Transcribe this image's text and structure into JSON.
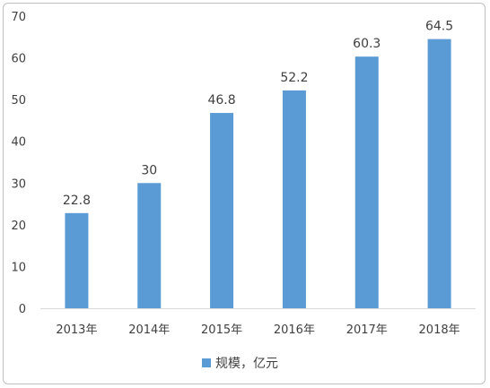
{
  "chart_data": {
    "type": "bar",
    "categories": [
      "2013年",
      "2014年",
      "2015年",
      "2016年",
      "2017年",
      "2018年"
    ],
    "series": [
      {
        "name": "规模，亿元",
        "values": [
          22.8,
          30,
          46.8,
          52.2,
          60.3,
          64.5
        ]
      }
    ],
    "data_labels": [
      "22.8",
      "30",
      "46.8",
      "52.2",
      "60.3",
      "64.5"
    ],
    "ylim": [
      0,
      70
    ],
    "yticks": [
      0,
      10,
      20,
      30,
      40,
      50,
      60,
      70
    ],
    "ytick_labels": [
      "0",
      "10",
      "20",
      "30",
      "40",
      "50",
      "60",
      "70"
    ],
    "grid": false,
    "legend_position": "bottom",
    "bar_color": "#5b9bd5",
    "axis_color": "#d9d9d9"
  }
}
